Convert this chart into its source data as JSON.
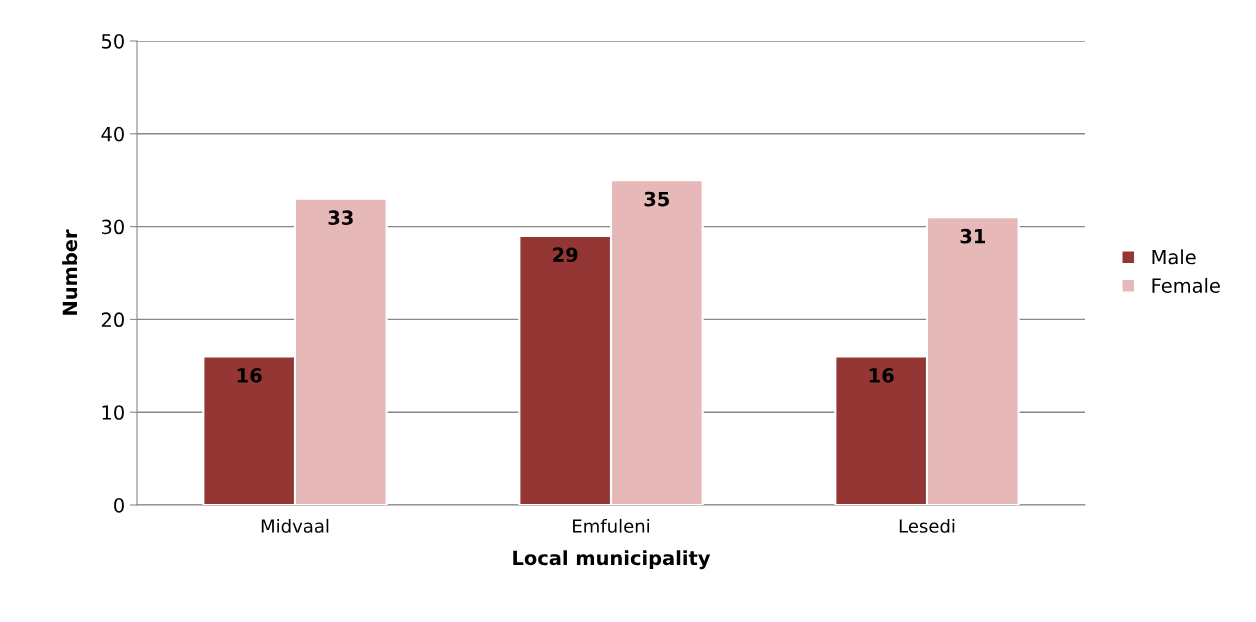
{
  "chart_data": {
    "type": "bar",
    "xlabel": "Local municipality",
    "ylabel": "Number",
    "categories": [
      "Midvaal",
      "Emfuleni",
      "Lesedi"
    ],
    "series": [
      {
        "name": "Male",
        "color": "#943634",
        "values": [
          16,
          29,
          16
        ]
      },
      {
        "name": "Female",
        "color": "#e6b9b8",
        "values": [
          33,
          35,
          31
        ]
      }
    ],
    "ylim": [
      0,
      50
    ],
    "yticks": [
      0,
      10,
      20,
      30,
      40,
      50
    ],
    "grid": "y",
    "legend": "right",
    "data_labels": true
  }
}
